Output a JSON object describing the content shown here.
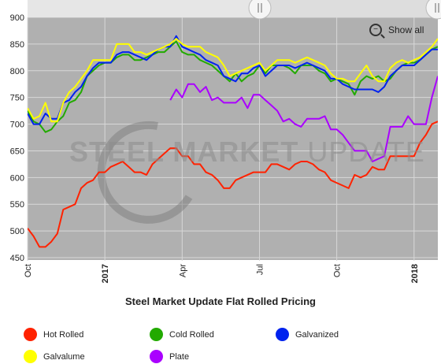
{
  "chart_data": {
    "type": "line",
    "title": "Steel Market Update Flat Rolled Pricing",
    "xlabel": "",
    "ylabel": "",
    "ylim": [
      450,
      900
    ],
    "yticks": [
      450,
      500,
      550,
      600,
      650,
      700,
      750,
      800,
      850,
      900
    ],
    "grid": true,
    "legend_position": "bottom",
    "x_ticks": [
      {
        "label": "Oct",
        "week": 0,
        "bold": false
      },
      {
        "label": "2017",
        "week": 13,
        "bold": true
      },
      {
        "label": "Apr",
        "week": 26,
        "bold": false
      },
      {
        "label": "Jul",
        "week": 39,
        "bold": false
      },
      {
        "label": "Oct",
        "week": 52,
        "bold": false
      },
      {
        "label": "2018",
        "week": 65,
        "bold": true
      }
    ],
    "x_max_week": 69,
    "series": [
      {
        "name": "Hot Rolled",
        "color": "#ff2200",
        "x": [
          0,
          1,
          2,
          3,
          4,
          5,
          6,
          7,
          8,
          9,
          10,
          11,
          12,
          13,
          14,
          15,
          16,
          17,
          18,
          19,
          20,
          21,
          22,
          23,
          24,
          25,
          26,
          27,
          28,
          29,
          30,
          31,
          32,
          33,
          34,
          35,
          36,
          37,
          38,
          39,
          40,
          41,
          42,
          43,
          44,
          45,
          46,
          47,
          48,
          49,
          50,
          51,
          52,
          53,
          54,
          55,
          56,
          57,
          58,
          59,
          60,
          61,
          62,
          63,
          64,
          65,
          66,
          67,
          68,
          69
        ],
        "values": [
          505,
          490,
          470,
          470,
          480,
          495,
          540,
          545,
          550,
          580,
          590,
          595,
          610,
          610,
          620,
          625,
          630,
          620,
          610,
          610,
          605,
          625,
          635,
          645,
          655,
          655,
          640,
          640,
          625,
          625,
          610,
          605,
          595,
          580,
          580,
          595,
          600,
          605,
          610,
          610,
          610,
          625,
          625,
          620,
          615,
          625,
          630,
          630,
          625,
          615,
          610,
          595,
          590,
          585,
          580,
          605,
          600,
          605,
          620,
          615,
          615,
          640,
          640,
          640,
          640,
          640,
          665,
          680,
          700,
          705
        ]
      },
      {
        "name": "Cold Rolled",
        "color": "#22aa00",
        "x": [
          0,
          1,
          2,
          3,
          4,
          5,
          6,
          7,
          8,
          9,
          10,
          11,
          12,
          13,
          14,
          15,
          16,
          17,
          18,
          19,
          20,
          21,
          22,
          23,
          24,
          25,
          26,
          27,
          28,
          29,
          30,
          31,
          32,
          33,
          34,
          35,
          36,
          37,
          38,
          39,
          40,
          41,
          42,
          43,
          44,
          45,
          46,
          47,
          48,
          49,
          50,
          51,
          52,
          53,
          54,
          55,
          56,
          57,
          58,
          59,
          60,
          61,
          62,
          63,
          64,
          65,
          66,
          67,
          68,
          69
        ],
        "values": [
          725,
          705,
          700,
          685,
          690,
          705,
          715,
          740,
          745,
          760,
          790,
          800,
          810,
          815,
          815,
          825,
          830,
          830,
          820,
          820,
          825,
          830,
          835,
          835,
          845,
          855,
          835,
          830,
          830,
          820,
          815,
          810,
          800,
          790,
          780,
          795,
          780,
          790,
          795,
          810,
          795,
          810,
          810,
          810,
          805,
          795,
          810,
          810,
          810,
          800,
          795,
          780,
          785,
          780,
          775,
          755,
          780,
          790,
          785,
          790,
          780,
          785,
          800,
          810,
          815,
          815,
          820,
          830,
          840,
          845
        ]
      },
      {
        "name": "Galvanized",
        "color": "#0022ee",
        "x": [
          0,
          1,
          2,
          3,
          4,
          5,
          6,
          7,
          8,
          9,
          10,
          11,
          12,
          13,
          14,
          15,
          16,
          17,
          18,
          19,
          20,
          21,
          22,
          23,
          24,
          25,
          26,
          27,
          28,
          29,
          30,
          31,
          32,
          33,
          34,
          35,
          36,
          37,
          38,
          39,
          40,
          41,
          42,
          43,
          44,
          45,
          46,
          47,
          48,
          49,
          50,
          51,
          52,
          53,
          54,
          55,
          56,
          57,
          58,
          59,
          60,
          61,
          62,
          63,
          64,
          65,
          66,
          67,
          68,
          69
        ],
        "values": [
          720,
          700,
          700,
          720,
          710,
          710,
          740,
          745,
          760,
          770,
          790,
          805,
          815,
          815,
          815,
          830,
          835,
          835,
          830,
          825,
          820,
          830,
          840,
          845,
          845,
          865,
          845,
          840,
          835,
          830,
          820,
          815,
          810,
          790,
          785,
          780,
          795,
          795,
          805,
          810,
          790,
          800,
          810,
          810,
          810,
          805,
          810,
          815,
          810,
          805,
          800,
          785,
          785,
          775,
          770,
          765,
          765,
          765,
          765,
          760,
          770,
          790,
          800,
          810,
          810,
          810,
          820,
          830,
          840,
          840
        ]
      },
      {
        "name": "Galvalume",
        "color": "#ffff00",
        "x": [
          0,
          1,
          2,
          3,
          4,
          5,
          6,
          7,
          8,
          9,
          10,
          11,
          12,
          13,
          14,
          15,
          16,
          17,
          18,
          19,
          20,
          21,
          22,
          23,
          24,
          25,
          26,
          27,
          28,
          29,
          30,
          31,
          32,
          33,
          34,
          35,
          36,
          37,
          38,
          39,
          40,
          41,
          42,
          43,
          44,
          45,
          46,
          47,
          48,
          49,
          50,
          51,
          52,
          53,
          54,
          55,
          56,
          57,
          58,
          59,
          60,
          61,
          62,
          63,
          64,
          65,
          66,
          67,
          68,
          69
        ],
        "values": [
          730,
          710,
          715,
          740,
          705,
          705,
          740,
          760,
          770,
          785,
          800,
          820,
          820,
          820,
          820,
          850,
          850,
          850,
          835,
          835,
          830,
          835,
          840,
          845,
          850,
          860,
          850,
          845,
          845,
          845,
          835,
          830,
          825,
          810,
          790,
          795,
          800,
          805,
          810,
          815,
          800,
          810,
          820,
          820,
          820,
          815,
          820,
          825,
          820,
          815,
          810,
          795,
          785,
          785,
          780,
          780,
          795,
          810,
          790,
          780,
          780,
          805,
          815,
          820,
          815,
          820,
          825,
          835,
          845,
          860
        ]
      },
      {
        "name": "Plate",
        "color": "#aa00ff",
        "x": [
          24,
          25,
          26,
          27,
          28,
          29,
          30,
          31,
          32,
          33,
          34,
          35,
          36,
          37,
          38,
          39,
          40,
          41,
          42,
          43,
          44,
          45,
          46,
          47,
          48,
          49,
          50,
          51,
          52,
          53,
          54,
          55,
          56,
          57,
          58,
          59,
          60,
          61,
          62,
          63,
          64,
          65,
          66,
          67,
          68,
          69
        ],
        "values": [
          745,
          765,
          750,
          775,
          775,
          760,
          770,
          745,
          750,
          740,
          740,
          740,
          750,
          730,
          755,
          755,
          745,
          735,
          725,
          705,
          710,
          700,
          695,
          710,
          710,
          710,
          715,
          690,
          690,
          680,
          665,
          650,
          650,
          650,
          630,
          635,
          640,
          695,
          695,
          695,
          715,
          700,
          700,
          700,
          750,
          790
        ]
      }
    ]
  },
  "controls": {
    "show_all_label": "Show all",
    "zoom_icon": "zoom-out-icon"
  },
  "watermark": {
    "part1": "STEEL MARKET ",
    "part2": "UPDATE"
  },
  "legend_layout": {
    "rows": 2
  }
}
